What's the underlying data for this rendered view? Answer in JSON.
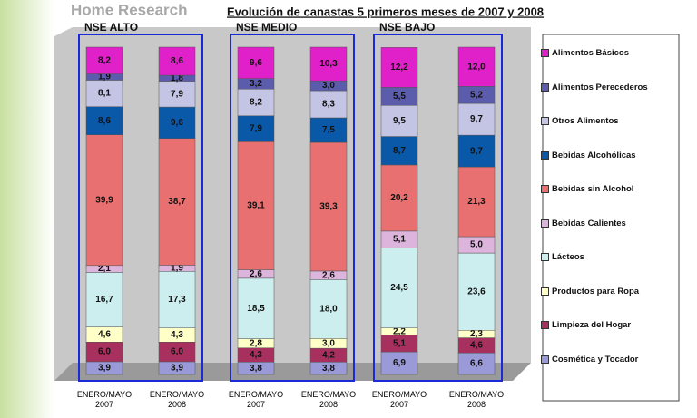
{
  "chart_data": {
    "type": "stacked-bar",
    "brand": "Home Research",
    "title": "Evolución de canastas 5 primeros meses de 2007 y 2008",
    "groups": [
      "NSE ALTO",
      "NSE MEDIO",
      "NSE BAJO"
    ],
    "categories": [
      "ENERO/MAYO 2007",
      "ENERO/MAYO 2008",
      "ENERO/MAYO 2007",
      "ENERO/MAYO 2008",
      "ENERO/MAYO 2007",
      "ENERO/MAYO 2008"
    ],
    "ylim": [
      0,
      100
    ],
    "series": [
      {
        "name": "Cosmética y Tocador",
        "color": "#9a9ad8",
        "values": [
          3.9,
          3.9,
          3.8,
          3.8,
          6.9,
          6.6
        ],
        "value_labels": [
          "3,9",
          "3,9",
          "3,8",
          "3,8",
          "6,9",
          "6,6"
        ]
      },
      {
        "name": "Limpieza del Hogar",
        "color": "#a8305e",
        "values": [
          6.0,
          6.0,
          4.3,
          4.2,
          5.1,
          4.6
        ],
        "value_labels": [
          "6,0",
          "6,0",
          "4,3",
          "4,2",
          "5,1",
          "4,6"
        ]
      },
      {
        "name": "Productos para Ropa",
        "color": "#ffffc8",
        "values": [
          4.6,
          4.3,
          2.8,
          3.0,
          2.2,
          2.3
        ],
        "value_labels": [
          "4,6",
          "4,3",
          "2,8",
          "3,0",
          "2,2",
          "2,3"
        ]
      },
      {
        "name": "Lácteos",
        "color": "#cceeee",
        "values": [
          16.7,
          17.3,
          18.5,
          18.0,
          24.5,
          23.6
        ],
        "value_labels": [
          "16,7",
          "17,3",
          "18,5",
          "18,0",
          "24,5",
          "23,6"
        ]
      },
      {
        "name": "Bebidas Calientes",
        "color": "#dcb4dc",
        "values": [
          2.1,
          1.9,
          2.6,
          2.6,
          5.1,
          5.0
        ],
        "value_labels": [
          "2,1",
          "1,9",
          "2,6",
          "2,6",
          "5,1",
          "5,0"
        ]
      },
      {
        "name": "Bebidas sin Alcohol",
        "color": "#e87070",
        "values": [
          39.9,
          38.7,
          39.1,
          39.3,
          20.2,
          21.3
        ],
        "value_labels": [
          "39,9",
          "38,7",
          "39,1",
          "39,3",
          "20,2",
          "21,3"
        ]
      },
      {
        "name": "Bebidas Alcohólicas",
        "color": "#0a58a8",
        "values": [
          8.6,
          9.6,
          7.9,
          7.5,
          8.7,
          9.7
        ],
        "value_labels": [
          "8,6",
          "9,6",
          "7,9",
          "7,5",
          "8,7",
          "9,7"
        ]
      },
      {
        "name": "Otros Alimentos",
        "color": "#c4c4e4",
        "values": [
          8.1,
          7.9,
          8.2,
          8.3,
          9.5,
          9.7
        ],
        "value_labels": [
          "8,1",
          "7,9",
          "8,2",
          "8,3",
          "9,5",
          "9,7"
        ]
      },
      {
        "name": "Alimentos Perecederos",
        "color": "#5c5cac",
        "values": [
          1.9,
          1.8,
          3.2,
          3.0,
          5.5,
          5.2
        ],
        "value_labels": [
          "1,9",
          "1,8",
          "3,2",
          "3,0",
          "5,5",
          "5,2"
        ]
      },
      {
        "name": "Alimentos Básicos",
        "color": "#e020c8",
        "values": [
          8.2,
          8.6,
          9.6,
          10.3,
          12.2,
          12.0
        ],
        "value_labels": [
          "8,2",
          "8,6",
          "9,6",
          "10,3",
          "12,2",
          "12,0"
        ]
      }
    ]
  }
}
